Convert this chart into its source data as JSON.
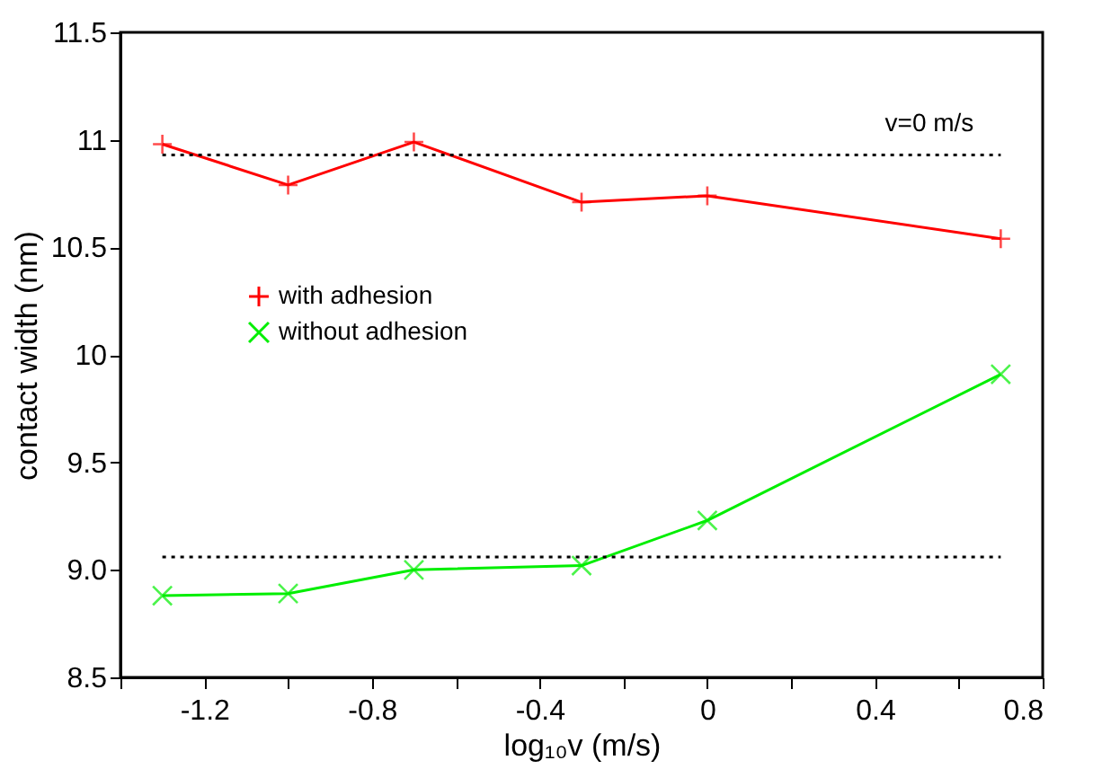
{
  "chart_data": {
    "type": "line",
    "xlabel": "log₁₀v (m/s)",
    "ylabel": "contact width (nm)",
    "x": [
      -1.3,
      -1.0,
      -0.7,
      -0.3,
      0,
      0.7
    ],
    "series": [
      {
        "name": "with adhesion",
        "color": "#ff0000",
        "marker": "cross",
        "values": [
          10.98,
          10.79,
          10.99,
          10.71,
          10.74,
          10.54
        ]
      },
      {
        "name": "without adhesion",
        "color": "#00ee00",
        "marker": "x",
        "values": [
          8.88,
          8.89,
          9.0,
          9.02,
          9.23,
          9.91
        ]
      }
    ],
    "xlim": [
      -1.4,
      0.8
    ],
    "xticks": [
      {
        "value": -1.4,
        "label": null
      },
      -1.2,
      {
        "value": -1.0,
        "label": null
      },
      -0.8,
      {
        "value": -0.6,
        "label": null
      },
      -0.4,
      {
        "value": -0.2,
        "label": null
      },
      0,
      {
        "value": 0.2,
        "label": null
      },
      0.4,
      {
        "value": 0.6,
        "label": null
      },
      0.8
    ],
    "ylim": [
      8.5,
      11.5
    ],
    "yticks": [
      8.5,
      {
        "value": 9,
        "label": "9.0"
      },
      9.5,
      10,
      10.5,
      11,
      11.5
    ],
    "ref_lines": [
      {
        "axis": "y",
        "value": 10.93,
        "label": "v=0 m/s",
        "color": "#000000",
        "line_style": "dotted"
      },
      {
        "axis": "y",
        "value": 9.06,
        "label": null,
        "color": "#000000",
        "line_style": "dotted"
      }
    ],
    "grid": false,
    "legend": "left",
    "line_style": "solid"
  }
}
